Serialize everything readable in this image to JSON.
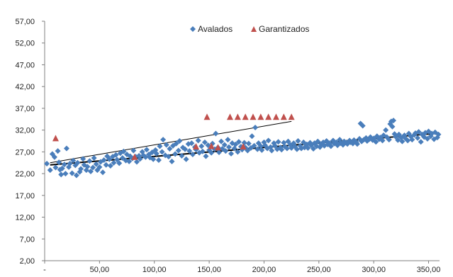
{
  "chart_data": {
    "type": "scatter",
    "xlim": [
      0,
      360
    ],
    "ylim": [
      2,
      57
    ],
    "x_ticks": [
      "-",
      "50,00",
      "100,00",
      "150,00",
      "200,00",
      "250,00",
      "300,00",
      "350,00"
    ],
    "x_tick_values": [
      0,
      50,
      100,
      150,
      200,
      250,
      300,
      350
    ],
    "y_ticks": [
      "2,00",
      "7,00",
      "12,00",
      "17,00",
      "22,00",
      "27,00",
      "32,00",
      "37,00",
      "42,00",
      "47,00",
      "52,00",
      "57,00"
    ],
    "y_tick_values": [
      2,
      7,
      12,
      17,
      22,
      27,
      32,
      37,
      42,
      47,
      52,
      57
    ],
    "grid": false,
    "legend": "top-center",
    "colors": {
      "avalados": "#4a7ebb",
      "garantizados": "#c0504d",
      "trend": "#000000",
      "axis": "#7f7f7f"
    },
    "series": [
      {
        "name": "Avalados",
        "marker": "diamond",
        "points": [
          [
            2,
            24.3
          ],
          [
            5,
            22.8
          ],
          [
            7,
            26.5
          ],
          [
            9,
            25.8
          ],
          [
            10,
            23.4
          ],
          [
            12,
            27.2
          ],
          [
            13,
            24.6
          ],
          [
            14,
            22.9
          ],
          [
            15,
            21.8
          ],
          [
            16,
            23.2
          ],
          [
            18,
            24.1
          ],
          [
            19,
            22.0
          ],
          [
            20,
            27.8
          ],
          [
            22,
            23.5
          ],
          [
            23,
            24.3
          ],
          [
            25,
            22.1
          ],
          [
            26,
            25.0
          ],
          [
            28,
            23.9
          ],
          [
            29,
            21.6
          ],
          [
            30,
            24.5
          ],
          [
            32,
            22.4
          ],
          [
            33,
            23.1
          ],
          [
            35,
            25.4
          ],
          [
            36,
            24.0
          ],
          [
            38,
            22.8
          ],
          [
            39,
            23.6
          ],
          [
            41,
            24.9
          ],
          [
            42,
            22.5
          ],
          [
            44,
            23.4
          ],
          [
            45,
            25.6
          ],
          [
            47,
            24.2
          ],
          [
            48,
            22.8
          ],
          [
            50,
            23.5
          ],
          [
            51,
            24.7
          ],
          [
            53,
            22.3
          ],
          [
            54,
            25.1
          ],
          [
            56,
            24.0
          ],
          [
            57,
            26.0
          ],
          [
            59,
            25.3
          ],
          [
            60,
            23.8
          ],
          [
            62,
            25.9
          ],
          [
            63,
            24.5
          ],
          [
            65,
            26.3
          ],
          [
            66,
            25.2
          ],
          [
            68,
            24.4
          ],
          [
            69,
            26.7
          ],
          [
            71,
            25.6
          ],
          [
            72,
            27.1
          ],
          [
            74,
            25.0
          ],
          [
            75,
            26.4
          ],
          [
            77,
            24.8
          ],
          [
            78,
            26.0
          ],
          [
            80,
            25.5
          ],
          [
            81,
            27.3
          ],
          [
            83,
            25.9
          ],
          [
            84,
            24.7
          ],
          [
            86,
            26.1
          ],
          [
            87,
            25.4
          ],
          [
            89,
            27.0
          ],
          [
            90,
            26.2
          ],
          [
            92,
            25.8
          ],
          [
            93,
            27.5
          ],
          [
            95,
            26.4
          ],
          [
            96,
            25.7
          ],
          [
            98,
            26.9
          ],
          [
            99,
            25.3
          ],
          [
            101,
            27.4
          ],
          [
            102,
            26.6
          ],
          [
            104,
            25.1
          ],
          [
            105,
            28.3
          ],
          [
            107,
            27.0
          ],
          [
            108,
            29.8
          ],
          [
            110,
            26.2
          ],
          [
            111,
            28.6
          ],
          [
            113,
            25.9
          ],
          [
            114,
            27.7
          ],
          [
            116,
            24.8
          ],
          [
            117,
            28.4
          ],
          [
            119,
            26.5
          ],
          [
            120,
            28.9
          ],
          [
            122,
            27.3
          ],
          [
            123,
            29.5
          ],
          [
            125,
            26.1
          ],
          [
            126,
            28.0
          ],
          [
            128,
            27.6
          ],
          [
            129,
            25.3
          ],
          [
            131,
            28.8
          ],
          [
            132,
            27.2
          ],
          [
            134,
            29.0
          ],
          [
            135,
            26.4
          ],
          [
            137,
            28.1
          ],
          [
            138,
            27.5
          ],
          [
            140,
            29.6
          ],
          [
            141,
            26.8
          ],
          [
            143,
            28.3
          ],
          [
            144,
            27.1
          ],
          [
            146,
            29.2
          ],
          [
            147,
            26.0
          ],
          [
            149,
            28.5
          ],
          [
            150,
            27.4
          ],
          [
            152,
            26.8
          ],
          [
            153,
            28.9
          ],
          [
            155,
            27.6
          ],
          [
            156,
            31.2
          ],
          [
            158,
            28.0
          ],
          [
            159,
            26.9
          ],
          [
            161,
            29.4
          ],
          [
            162,
            27.7
          ],
          [
            164,
            28.6
          ],
          [
            165,
            27.2
          ],
          [
            167,
            29.8
          ],
          [
            168,
            28.1
          ],
          [
            170,
            26.6
          ],
          [
            171,
            29.0
          ],
          [
            173,
            27.8
          ],
          [
            174,
            28.7
          ],
          [
            176,
            27.0
          ],
          [
            177,
            29.3
          ],
          [
            179,
            28.2
          ],
          [
            180,
            27.5
          ],
          [
            182,
            29.1
          ],
          [
            183,
            28.0
          ],
          [
            185,
            27.3
          ],
          [
            186,
            28.9
          ],
          [
            188,
            27.9
          ],
          [
            189,
            30.6
          ],
          [
            191,
            28.4
          ],
          [
            192,
            32.6
          ],
          [
            194,
            27.6
          ],
          [
            195,
            29.0
          ],
          [
            197,
            28.3
          ],
          [
            198,
            27.4
          ],
          [
            200,
            29.2
          ],
          [
            201,
            28.5
          ],
          [
            203,
            27.8
          ],
          [
            204,
            29.6
          ],
          [
            206,
            28.1
          ],
          [
            207,
            27.3
          ],
          [
            209,
            29.0
          ],
          [
            210,
            28.4
          ],
          [
            212,
            27.6
          ],
          [
            213,
            29.3
          ],
          [
            215,
            28.0
          ],
          [
            216,
            27.5
          ],
          [
            218,
            29.1
          ],
          [
            219,
            28.2
          ],
          [
            221,
            27.8
          ],
          [
            222,
            29.4
          ],
          [
            224,
            28.6
          ],
          [
            225,
            27.9
          ],
          [
            227,
            29.0
          ],
          [
            228,
            28.3
          ],
          [
            230,
            27.6
          ],
          [
            231,
            29.5
          ],
          [
            233,
            28.4
          ],
          [
            234,
            27.8
          ],
          [
            236,
            29.2
          ],
          [
            237,
            28.0
          ],
          [
            239,
            28.7
          ],
          [
            240,
            27.9
          ],
          [
            242,
            29.1
          ],
          [
            243,
            28.5
          ],
          [
            245,
            27.7
          ],
          [
            246,
            29.0
          ],
          [
            248,
            28.3
          ],
          [
            249,
            29.4
          ],
          [
            251,
            28.1
          ],
          [
            252,
            28.8
          ],
          [
            254,
            29.2
          ],
          [
            255,
            28.4
          ],
          [
            257,
            29.5
          ],
          [
            258,
            28.7
          ],
          [
            260,
            29.0
          ],
          [
            261,
            28.3
          ],
          [
            263,
            29.6
          ],
          [
            264,
            28.9
          ],
          [
            266,
            29.2
          ],
          [
            267,
            28.5
          ],
          [
            269,
            29.8
          ],
          [
            270,
            29.0
          ],
          [
            272,
            28.6
          ],
          [
            273,
            29.4
          ],
          [
            275,
            29.1
          ],
          [
            276,
            28.8
          ],
          [
            278,
            29.6
          ],
          [
            279,
            29.2
          ],
          [
            281,
            28.9
          ],
          [
            282,
            29.7
          ],
          [
            284,
            29.3
          ],
          [
            285,
            28.8
          ],
          [
            287,
            30.0
          ],
          [
            288,
            33.5
          ],
          [
            289,
            29.4
          ],
          [
            290,
            33.0
          ],
          [
            291,
            29.8
          ],
          [
            293,
            30.2
          ],
          [
            294,
            29.5
          ],
          [
            296,
            29.9
          ],
          [
            297,
            30.4
          ],
          [
            299,
            29.7
          ],
          [
            300,
            30.1
          ],
          [
            302,
            29.3
          ],
          [
            303,
            30.6
          ],
          [
            305,
            29.9
          ],
          [
            306,
            30.3
          ],
          [
            308,
            29.6
          ],
          [
            309,
            30.8
          ],
          [
            311,
            32.0
          ],
          [
            312,
            30.4
          ],
          [
            314,
            29.8
          ],
          [
            315,
            33.4
          ],
          [
            316,
            34.0
          ],
          [
            317,
            32.8
          ],
          [
            318,
            34.2
          ],
          [
            319,
            31.1
          ],
          [
            320,
            30.5
          ],
          [
            322,
            29.7
          ],
          [
            323,
            31.0
          ],
          [
            325,
            30.3
          ],
          [
            326,
            29.4
          ],
          [
            328,
            30.8
          ],
          [
            329,
            30.1
          ],
          [
            331,
            29.6
          ],
          [
            332,
            31.2
          ],
          [
            334,
            30.5
          ],
          [
            335,
            29.8
          ],
          [
            337,
            30.9
          ],
          [
            338,
            31.3
          ],
          [
            340,
            30.2
          ],
          [
            341,
            31.6
          ],
          [
            343,
            29.3
          ],
          [
            344,
            31.0
          ],
          [
            346,
            30.4
          ],
          [
            347,
            31.4
          ],
          [
            349,
            30.0
          ],
          [
            350,
            31.7
          ],
          [
            352,
            30.6
          ],
          [
            353,
            31.2
          ],
          [
            355,
            29.9
          ],
          [
            356,
            31.5
          ],
          [
            358,
            30.3
          ],
          [
            359,
            31.0
          ]
        ]
      },
      {
        "name": "Garantizados",
        "marker": "triangle",
        "points": [
          [
            10,
            30.1
          ],
          [
            82,
            25.8
          ],
          [
            138,
            28.2
          ],
          [
            148,
            35.0
          ],
          [
            152,
            28.3
          ],
          [
            158,
            28.0
          ],
          [
            169,
            35.0
          ],
          [
            176,
            35.0
          ],
          [
            181,
            28.2
          ],
          [
            183,
            35.0
          ],
          [
            190,
            35.0
          ],
          [
            197,
            35.0
          ],
          [
            204,
            35.0
          ],
          [
            211,
            35.0
          ],
          [
            218,
            35.0
          ],
          [
            225,
            35.0
          ]
        ]
      }
    ],
    "trendlines": [
      {
        "series": "Garantizados",
        "from": [
          5,
          24.5
        ],
        "to": [
          225,
          34.0
        ]
      },
      {
        "series": "Avalados",
        "from": [
          5,
          24.0
        ],
        "to": [
          360,
          31.3
        ]
      }
    ]
  }
}
